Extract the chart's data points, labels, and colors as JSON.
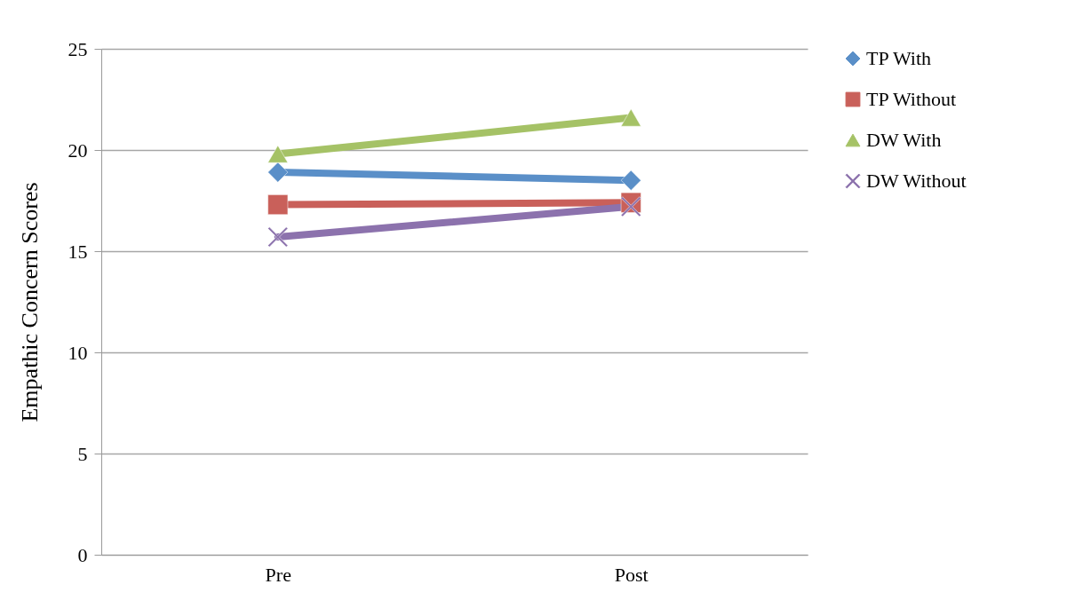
{
  "chart_data": {
    "type": "line",
    "ylabel": "Empathic Concern Scores",
    "categories": [
      "Pre",
      "Post"
    ],
    "series": [
      {
        "name": "TP With",
        "color": "#5a8fc8",
        "marker": "diamond",
        "values": [
          18.9,
          18.5
        ]
      },
      {
        "name": "TP Without",
        "color": "#c9605a",
        "marker": "square",
        "values": [
          17.3,
          17.4
        ]
      },
      {
        "name": "DW With",
        "color": "#a5c266",
        "marker": "triangle",
        "values": [
          19.8,
          21.6
        ]
      },
      {
        "name": "DW Without",
        "color": "#8c72ad",
        "marker": "cross",
        "values": [
          15.7,
          17.2
        ]
      }
    ],
    "ylim": [
      0,
      25
    ],
    "yticks": [
      0,
      5,
      10,
      15,
      20,
      25
    ],
    "grid": "y",
    "legend": "right"
  }
}
